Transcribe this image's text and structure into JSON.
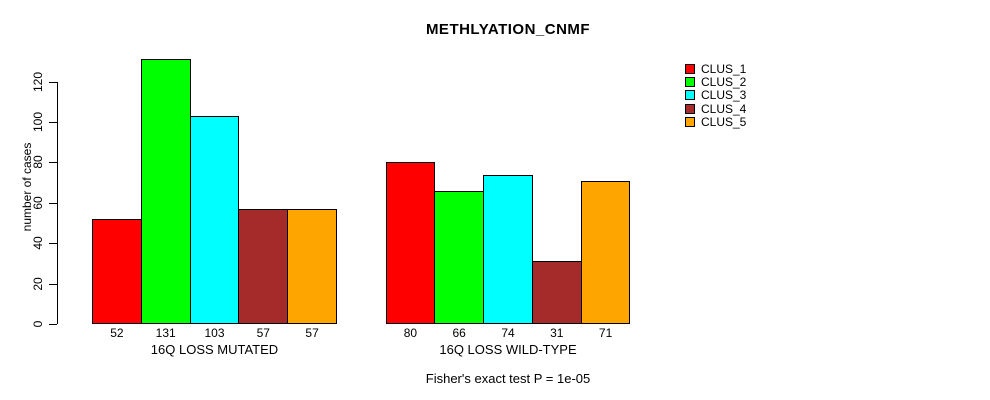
{
  "title": "METHLYATION_CNMF",
  "footer": "Fisher's exact test P = 1e-05",
  "chart_data": {
    "type": "bar",
    "title": "METHLYATION_CNMF",
    "xlabel": "",
    "ylabel": "number of cases",
    "ylim": [
      0,
      135
    ],
    "yticks": [
      0,
      20,
      40,
      60,
      80,
      100,
      120
    ],
    "grid": false,
    "legend_position": "right",
    "series_names": [
      "CLUS_1",
      "CLUS_2",
      "CLUS_3",
      "CLUS_4",
      "CLUS_5"
    ],
    "colors": [
      "#FF0000",
      "#00FF00",
      "#00FFFF",
      "#A52A2A",
      "#FFA500"
    ],
    "groups": [
      {
        "label": "16Q LOSS MUTATED",
        "values": [
          52,
          131,
          103,
          57,
          57
        ],
        "value_labels": [
          "52",
          "131",
          "103",
          "57",
          "57"
        ]
      },
      {
        "label": "16Q LOSS WILD-TYPE",
        "values": [
          80,
          66,
          74,
          31,
          71
        ],
        "value_labels": [
          "80",
          "66",
          "74",
          "31",
          "71"
        ]
      }
    ],
    "annotation": "Fisher's exact test P = 1e-05"
  }
}
